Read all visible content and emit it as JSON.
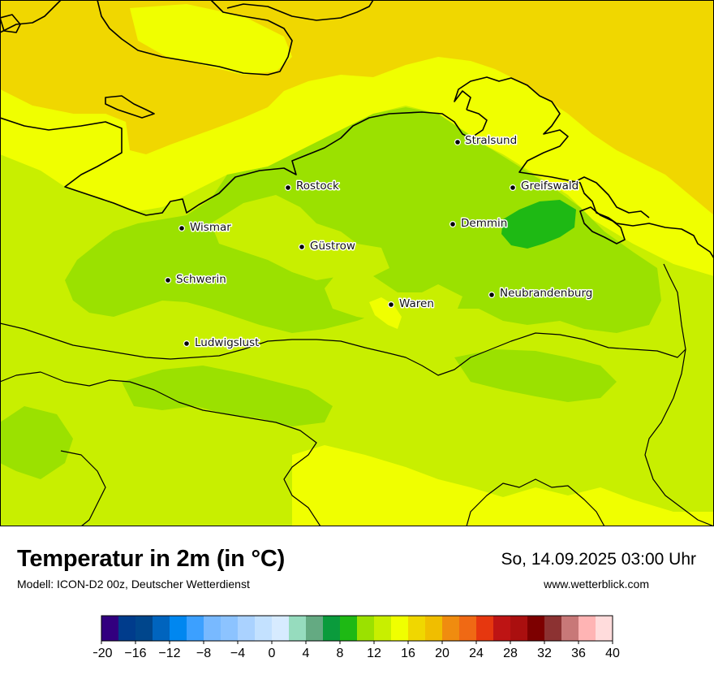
{
  "title": "Temperatur in 2m (in °C)",
  "model_info": "Modell: ICON-D2 00z, Deutscher Wetterdienst",
  "datetime": "So, 14.09.2025 03:00 Uhr",
  "website": "www.wetterblick.com",
  "cities": [
    {
      "name": "Stralsund"
    },
    {
      "name": "Rostock"
    },
    {
      "name": "Greifswald"
    },
    {
      "name": "Wismar"
    },
    {
      "name": "Demmin"
    },
    {
      "name": "Güstrow"
    },
    {
      "name": "Schwerin"
    },
    {
      "name": "Neubrandenburg"
    },
    {
      "name": "Waren"
    },
    {
      "name": "Ludwigslust"
    }
  ],
  "legend": {
    "min": -20,
    "max": 40,
    "step": 2,
    "colors": [
      "#32007f",
      "#003c8c",
      "#00468c",
      "#0064be",
      "#0087f0",
      "#3ca0ff",
      "#78b9ff",
      "#8cc3ff",
      "#aad2ff",
      "#c3e1ff",
      "#d7ebff",
      "#96dcbe",
      "#64aa82",
      "#0a9b3c",
      "#1eb914",
      "#9be100",
      "#c8ef00",
      "#f0ff00",
      "#f0d700",
      "#f0be00",
      "#f08c0f",
      "#f06914",
      "#e6370f",
      "#be1414",
      "#aa0f0f",
      "#7d0000",
      "#8c3232",
      "#c87878",
      "#ffb4b4",
      "#ffdcdc"
    ],
    "tick_labels": [
      "−20",
      "−16",
      "−12",
      "−8",
      "−4",
      "0",
      "4",
      "8",
      "12",
      "16",
      "20",
      "24",
      "28",
      "32",
      "36",
      "40"
    ]
  }
}
